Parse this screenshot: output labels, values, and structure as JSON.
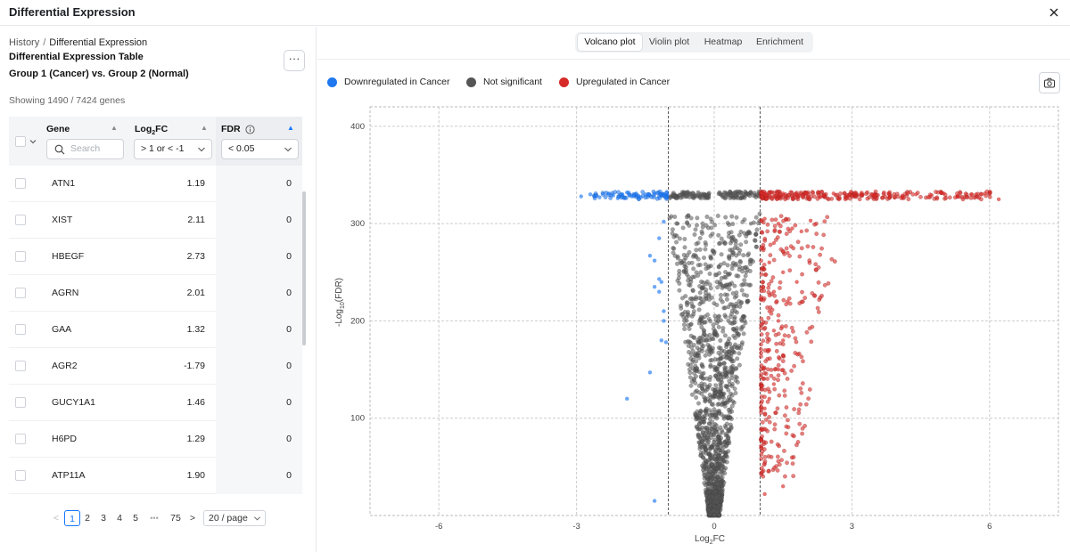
{
  "window": {
    "title": "Differential Expression"
  },
  "breadcrumb": {
    "root": "History",
    "separator": "/",
    "current": "Differential Expression"
  },
  "table_panel": {
    "title": "Differential Expression Table",
    "subtitle": "Group 1 (Cancer) vs. Group 2 (Normal)",
    "more_label": "···",
    "showing": "Showing 1490 / 7424 genes",
    "columns": {
      "gene": "Gene",
      "log2fc_base": "Log",
      "log2fc_sub": "2",
      "log2fc_suffix": "FC",
      "fdr": "FDR"
    },
    "filters": {
      "search_placeholder": "Search",
      "log2fc": "> 1 or < -1",
      "fdr": "< 0.05"
    },
    "rows": [
      {
        "gene": "ATN1",
        "log2fc": "1.19",
        "fdr": "0"
      },
      {
        "gene": "XIST",
        "log2fc": "2.11",
        "fdr": "0"
      },
      {
        "gene": "HBEGF",
        "log2fc": "2.73",
        "fdr": "0"
      },
      {
        "gene": "AGRN",
        "log2fc": "2.01",
        "fdr": "0"
      },
      {
        "gene": "GAA",
        "log2fc": "1.32",
        "fdr": "0"
      },
      {
        "gene": "AGR2",
        "log2fc": "-1.79",
        "fdr": "0"
      },
      {
        "gene": "GUCY1A1",
        "log2fc": "1.46",
        "fdr": "0"
      },
      {
        "gene": "H6PD",
        "log2fc": "1.29",
        "fdr": "0"
      },
      {
        "gene": "ATP11A",
        "log2fc": "1.90",
        "fdr": "0"
      }
    ]
  },
  "pagination": {
    "prev": "<",
    "pages": [
      "1",
      "2",
      "3",
      "4",
      "5"
    ],
    "ellipsis": "•••",
    "last": "75",
    "next": ">",
    "current": "1",
    "page_size": "20 / page"
  },
  "viz_tabs": [
    {
      "label": "Volcano plot",
      "active": true
    },
    {
      "label": "Violin plot",
      "active": false
    },
    {
      "label": "Heatmap",
      "active": false
    },
    {
      "label": "Enrichment",
      "active": false
    }
  ],
  "legend": [
    {
      "label": "Downregulated in Cancer",
      "color": "#1f78f0"
    },
    {
      "label": "Not significant",
      "color": "#555555"
    },
    {
      "label": "Upregulated in Cancer",
      "color": "#d62b28"
    }
  ],
  "icons": {
    "close": "close-icon",
    "camera": "camera-icon",
    "info": "info-icon",
    "sort": "sort-icon",
    "search": "search-icon",
    "chevron": "chevron-down-icon"
  },
  "chart_data": {
    "type": "scatter",
    "title": "",
    "xlabel_base": "Log",
    "xlabel_sub": "2",
    "xlabel_suffix": "FC",
    "ylabel": "-Log10(FDR)",
    "ylabel_parts": {
      "pre": "-Log",
      "sub": "10",
      "post": "(FDR)"
    },
    "xlim": [
      -7.5,
      7.5
    ],
    "ylim": [
      0,
      420
    ],
    "x_ticks": [
      -6,
      -3,
      0,
      3,
      6
    ],
    "y_ticks": [
      100,
      200,
      300,
      400
    ],
    "thresholds": {
      "log2fc": [
        -1,
        1
      ]
    },
    "grid": true,
    "series": [
      {
        "name": "Downregulated in Cancer",
        "color": "#1f78f0",
        "points": [
          [
            -2.9,
            328
          ],
          [
            -2.7,
            330
          ],
          [
            -2.5,
            327
          ],
          [
            -2.3,
            331
          ],
          [
            -2.2,
            329
          ],
          [
            -2.1,
            326
          ],
          [
            -2.0,
            330
          ],
          [
            -1.9,
            332
          ],
          [
            -1.8,
            328
          ],
          [
            -1.7,
            331
          ],
          [
            -1.6,
            327
          ],
          [
            -1.5,
            330
          ],
          [
            -1.4,
            329
          ],
          [
            -1.3,
            331
          ],
          [
            -1.2,
            328
          ],
          [
            -1.1,
            330
          ],
          [
            -1.05,
            327
          ],
          [
            -1.1,
            302
          ],
          [
            -1.2,
            285
          ],
          [
            -1.4,
            267
          ],
          [
            -1.3,
            262
          ],
          [
            -1.2,
            243
          ],
          [
            -1.15,
            240
          ],
          [
            -1.3,
            235
          ],
          [
            -1.2,
            230
          ],
          [
            -1.1,
            210
          ],
          [
            -1.1,
            200
          ],
          [
            -1.15,
            180
          ],
          [
            -1.05,
            178
          ],
          [
            -1.4,
            147
          ],
          [
            -1.9,
            120
          ],
          [
            -1.3,
            15
          ]
        ]
      },
      {
        "name": "Upregulated in Cancer",
        "color": "#d62b28",
        "points": [
          [
            1.1,
            330
          ],
          [
            1.3,
            328
          ],
          [
            1.5,
            331
          ],
          [
            1.8,
            329
          ],
          [
            2.0,
            330
          ],
          [
            2.3,
            327
          ],
          [
            2.6,
            331
          ],
          [
            2.9,
            328
          ],
          [
            3.2,
            330
          ],
          [
            3.5,
            329
          ],
          [
            3.8,
            331
          ],
          [
            4.1,
            328
          ],
          [
            4.4,
            330
          ],
          [
            4.7,
            327
          ],
          [
            5.0,
            331
          ],
          [
            5.3,
            328
          ],
          [
            5.6,
            330
          ],
          [
            5.9,
            331
          ],
          [
            6.2,
            325
          ],
          [
            1.1,
            305
          ],
          [
            1.4,
            300
          ],
          [
            1.7,
            295
          ],
          [
            1.9,
            292
          ],
          [
            2.1,
            303
          ],
          [
            1.3,
            280
          ],
          [
            1.6,
            270
          ],
          [
            1.2,
            260
          ],
          [
            1.5,
            250
          ],
          [
            1.8,
            240
          ],
          [
            1.3,
            230
          ],
          [
            1.6,
            220
          ],
          [
            1.2,
            210
          ],
          [
            1.4,
            200
          ],
          [
            1.3,
            190
          ],
          [
            1.5,
            180
          ],
          [
            1.2,
            170
          ],
          [
            1.4,
            150
          ],
          [
            1.3,
            135
          ],
          [
            1.2,
            120
          ],
          [
            1.1,
            110
          ],
          [
            1.5,
            30
          ],
          [
            1.1,
            22
          ]
        ]
      },
      {
        "name": "Not significant",
        "color": "#555555",
        "points": [
          [
            -0.9,
            330
          ],
          [
            -0.6,
            331
          ],
          [
            -0.4,
            329
          ],
          [
            -0.2,
            330
          ],
          [
            0.3,
            330
          ],
          [
            0.5,
            328
          ],
          [
            0.7,
            331
          ],
          [
            0.9,
            329
          ],
          [
            -0.8,
            300
          ],
          [
            0.8,
            300
          ],
          [
            -0.7,
            260
          ],
          [
            0.7,
            250
          ],
          [
            -0.6,
            200
          ],
          [
            0.6,
            200
          ],
          [
            -0.4,
            150
          ],
          [
            0.4,
            150
          ],
          [
            -0.3,
            100
          ],
          [
            0.3,
            100
          ],
          [
            -0.2,
            50
          ],
          [
            0.2,
            50
          ],
          [
            0.0,
            5
          ]
        ]
      }
    ]
  }
}
